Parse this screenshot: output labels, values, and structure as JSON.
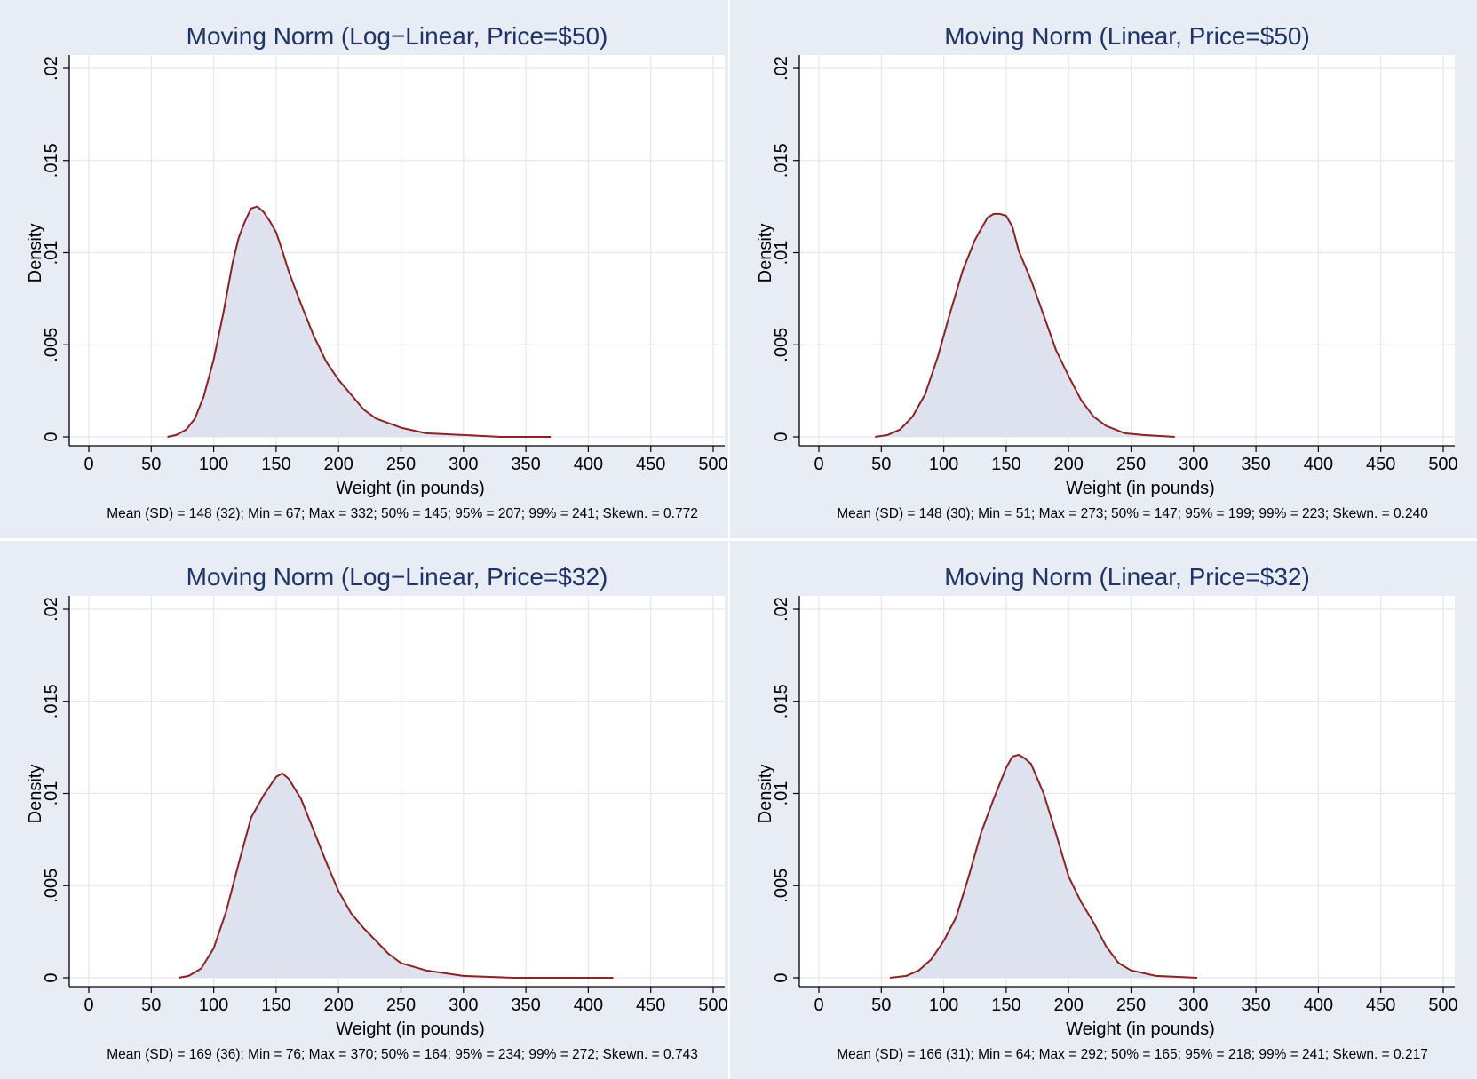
{
  "colors": {
    "background": "#e8ecf4",
    "plot_area": "#ffffff",
    "grid": "#e3e7f0",
    "histogram_fill": "#dde2ee",
    "density_line": "#8b2323",
    "title": "#1f3366",
    "text": "#000000"
  },
  "chart_data": [
    {
      "type": "area",
      "title": "Moving Norm (Log−Linear, Price=$50)",
      "xlabel": "Weight (in pounds)",
      "ylabel": "Density",
      "xlim": [
        0,
        500
      ],
      "ylim": [
        0,
        0.02
      ],
      "x_ticks": [
        "0",
        "50",
        "100",
        "150",
        "200",
        "250",
        "300",
        "350",
        "400",
        "450",
        "500"
      ],
      "y_ticks": [
        "0",
        ".005",
        ".01",
        ".015",
        ".02"
      ],
      "grid": true,
      "note": "Mean (SD) = 148 (32); Min = 67; Max = 332; 50% = 145; 95% = 207; 99% = 241; Skewn. = 0.772",
      "series": [
        {
          "x": [
            63,
            70,
            78,
            85,
            92,
            100,
            108,
            115,
            120,
            125,
            130,
            135,
            140,
            145,
            150,
            155,
            160,
            170,
            180,
            190,
            200,
            210,
            220,
            230,
            250,
            270,
            300,
            330,
            370
          ],
          "y": [
            0.0,
            0.0001,
            0.0004,
            0.001,
            0.0022,
            0.0042,
            0.0068,
            0.0094,
            0.0108,
            0.0117,
            0.0124,
            0.0125,
            0.0122,
            0.0117,
            0.0111,
            0.0101,
            0.009,
            0.0072,
            0.0055,
            0.0041,
            0.0031,
            0.0023,
            0.0015,
            0.001,
            0.0005,
            0.0002,
            0.0001,
            0.0,
            0.0
          ]
        }
      ]
    },
    {
      "type": "area",
      "title": "Moving Norm (Linear, Price=$50)",
      "xlabel": "Weight (in pounds)",
      "ylabel": "Density",
      "xlim": [
        0,
        500
      ],
      "ylim": [
        0,
        0.02
      ],
      "x_ticks": [
        "0",
        "50",
        "100",
        "150",
        "200",
        "250",
        "300",
        "350",
        "400",
        "450",
        "500"
      ],
      "y_ticks": [
        "0",
        ".005",
        ".01",
        ".015",
        ".02"
      ],
      "grid": true,
      "note": "Mean (SD) = 148 (30); Min = 51; Max = 273; 50% = 147; 95% = 199; 99% = 223; Skewn. = 0.240",
      "series": [
        {
          "x": [
            45,
            55,
            65,
            75,
            85,
            95,
            105,
            115,
            125,
            135,
            140,
            145,
            150,
            155,
            160,
            170,
            180,
            190,
            200,
            210,
            220,
            230,
            245,
            260,
            285
          ],
          "y": [
            0.0,
            0.0001,
            0.0004,
            0.0011,
            0.0023,
            0.0043,
            0.0067,
            0.009,
            0.0107,
            0.0119,
            0.0121,
            0.0121,
            0.012,
            0.0114,
            0.0101,
            0.0085,
            0.0066,
            0.0047,
            0.0033,
            0.002,
            0.0011,
            0.0006,
            0.0002,
            0.0001,
            0.0
          ]
        }
      ]
    },
    {
      "type": "area",
      "title": "Moving Norm (Log−Linear, Price=$32)",
      "xlabel": "Weight (in pounds)",
      "ylabel": "Density",
      "xlim": [
        0,
        500
      ],
      "ylim": [
        0,
        0.02
      ],
      "x_ticks": [
        "0",
        "50",
        "100",
        "150",
        "200",
        "250",
        "300",
        "350",
        "400",
        "450",
        "500"
      ],
      "y_ticks": [
        "0",
        ".005",
        ".01",
        ".015",
        ".02"
      ],
      "grid": true,
      "note": "Mean (SD) = 169 (36); Min = 76; Max = 370; 50% = 164; 95% = 234; 99% = 272; Skewn. = 0.743",
      "series": [
        {
          "x": [
            72,
            80,
            90,
            100,
            110,
            120,
            130,
            140,
            150,
            155,
            160,
            170,
            180,
            190,
            200,
            210,
            220,
            230,
            240,
            250,
            270,
            300,
            340,
            380,
            420
          ],
          "y": [
            0.0,
            0.0001,
            0.0005,
            0.0016,
            0.0036,
            0.0062,
            0.0087,
            0.0099,
            0.0109,
            0.0111,
            0.0108,
            0.0097,
            0.008,
            0.0063,
            0.0047,
            0.0035,
            0.0027,
            0.002,
            0.0013,
            0.0008,
            0.0004,
            0.0001,
            0.0,
            0.0,
            0.0
          ]
        }
      ]
    },
    {
      "type": "area",
      "title": "Moving Norm (Linear, Price=$32)",
      "xlabel": "Weight (in pounds)",
      "ylabel": "Density",
      "xlim": [
        0,
        500
      ],
      "ylim": [
        0,
        0.02
      ],
      "x_ticks": [
        "0",
        "50",
        "100",
        "150",
        "200",
        "250",
        "300",
        "350",
        "400",
        "450",
        "500"
      ],
      "y_ticks": [
        "0",
        ".005",
        ".01",
        ".015",
        ".02"
      ],
      "grid": true,
      "note": "Mean (SD) = 166 (31); Min = 64; Max = 292; 50% = 165; 95% = 218; 99% = 241; Skewn. = 0.217",
      "series": [
        {
          "x": [
            57,
            70,
            80,
            90,
            100,
            110,
            120,
            130,
            140,
            150,
            155,
            160,
            165,
            170,
            180,
            190,
            200,
            210,
            220,
            230,
            240,
            250,
            270,
            303
          ],
          "y": [
            0.0,
            0.0001,
            0.0004,
            0.001,
            0.002,
            0.0033,
            0.0055,
            0.0079,
            0.0097,
            0.0114,
            0.012,
            0.0121,
            0.0119,
            0.0116,
            0.01,
            0.0078,
            0.0055,
            0.0041,
            0.003,
            0.0017,
            0.0008,
            0.0004,
            0.0001,
            0.0
          ]
        }
      ]
    }
  ]
}
